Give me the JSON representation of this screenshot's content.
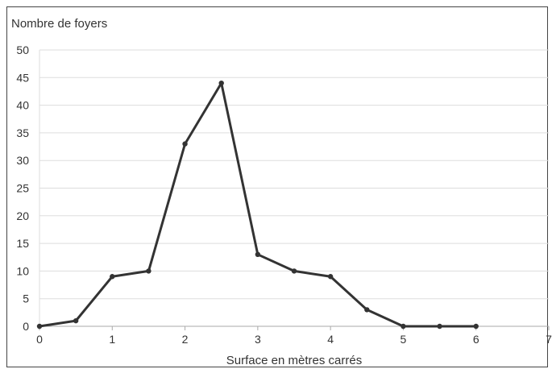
{
  "chart_data": {
    "type": "line",
    "title": "Nombre de foyers",
    "xlabel": "Surface en mètres carrés",
    "ylabel": "Nombre de foyers",
    "xlim": [
      0,
      7
    ],
    "ylim": [
      0,
      50
    ],
    "x_ticks": [
      0,
      1,
      2,
      3,
      4,
      5,
      6,
      7
    ],
    "y_ticks": [
      0,
      5,
      10,
      15,
      20,
      25,
      30,
      35,
      40,
      45,
      50
    ],
    "grid": true,
    "series": [
      {
        "x": [
          0,
          0.5,
          1,
          1.5,
          2,
          2.5,
          3,
          3.5,
          4,
          4.5,
          5,
          5.5,
          6
        ],
        "values": [
          0,
          1,
          9,
          10,
          33,
          44,
          13,
          10,
          9,
          3,
          0,
          0,
          0
        ]
      }
    ],
    "colors": {
      "line": "#333333",
      "grid": "#dddddd",
      "axis": "#aaaaaa"
    }
  }
}
